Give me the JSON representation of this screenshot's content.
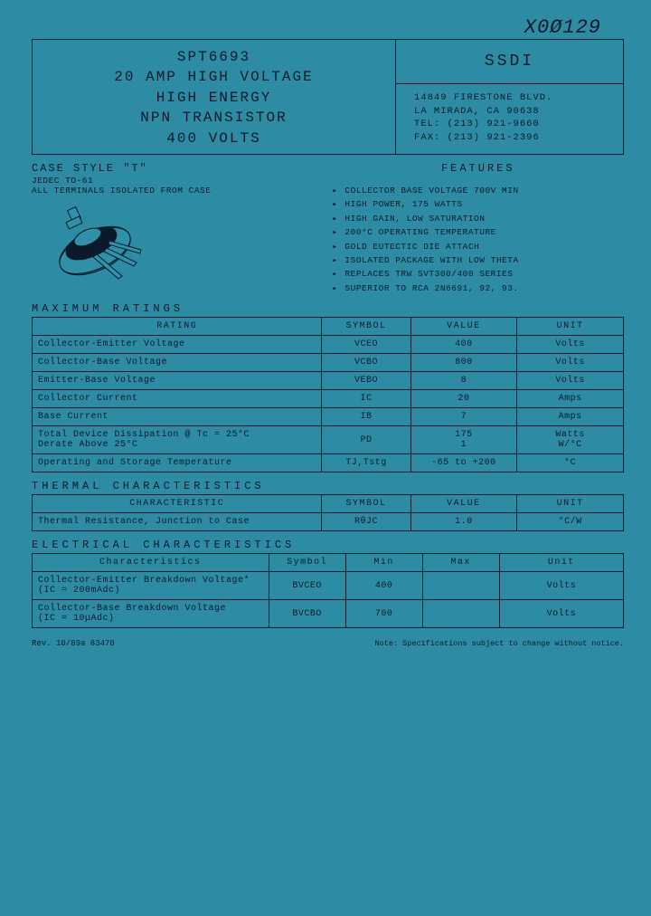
{
  "handwritten": "X0Ø129",
  "header": {
    "part": "SPT6693",
    "line1": "20 AMP HIGH VOLTAGE",
    "line2": "HIGH ENERGY",
    "line3": "NPN TRANSISTOR",
    "line4": "400 VOLTS",
    "company": "SSDI",
    "addr1": "14849 FIRESTONE BLVD.",
    "addr2": "LA MIRADA,  CA  90638",
    "tel": "TEL: (213) 921-9660",
    "fax": "FAX: (213) 921-2396"
  },
  "case": {
    "title": "CASE STYLE \"T\"",
    "sub1": "JEDEC TO-61",
    "sub2": "ALL TERMINALS ISOLATED FROM CASE"
  },
  "features": {
    "title": "FEATURES",
    "items": [
      "COLLECTOR BASE VOLTAGE 700V MIN",
      "HIGH POWER,  175 WATTS",
      "HIGH GAIN, LOW SATURATION",
      "200°C OPERATING TEMPERATURE",
      "GOLD EUTECTIC DIE ATTACH",
      "ISOLATED PACKAGE WITH LOW THETA",
      "REPLACES TRW SVT300/400 SERIES",
      "SUPERIOR TO RCA 2N6691, 92, 93."
    ]
  },
  "maxratings": {
    "title": "MAXIMUM RATINGS",
    "headers": [
      "RATING",
      "SYMBOL",
      "VALUE",
      "UNIT"
    ],
    "rows": [
      [
        "Collector-Emitter Voltage",
        "VCEO",
        "400",
        "Volts"
      ],
      [
        "Collector-Base Voltage",
        "VCBO",
        "800",
        "Volts"
      ],
      [
        "Emitter-Base Voltage",
        "VEBO",
        "8",
        "Volts"
      ],
      [
        "Collector Current",
        "IC",
        "20",
        "Amps"
      ],
      [
        "Base Current",
        "IB",
        "7",
        "Amps"
      ],
      [
        "Total Device Dissipation @ Tc = 25°C\nDerate Above  25°C",
        "PD",
        "175\n1",
        "Watts\nW/°C"
      ],
      [
        "Operating and Storage Temperature",
        "TJ,Tstg",
        "-65 to +200",
        "°C"
      ]
    ]
  },
  "thermal": {
    "title": "THERMAL CHARACTERISTICS",
    "headers": [
      "CHARACTERISTIC",
      "SYMBOL",
      "VALUE",
      "UNIT"
    ],
    "rows": [
      [
        "Thermal Resistance, Junction to Case",
        "RθJC",
        "1.0",
        "°C/W"
      ]
    ]
  },
  "electrical": {
    "title": "ELECTRICAL CHARACTERISTICS",
    "headers": [
      "Characteristics",
      "Symbol",
      "Min",
      "Max",
      "Unit"
    ],
    "rows": [
      [
        "Collector-Emitter Breakdown Voltage*\n(IC = 200mAdc)",
        "BVCEO",
        "400",
        "",
        "Volts"
      ],
      [
        "Collector-Base Breakdown Voltage\n(IC = 10µAdc)",
        "BVCBO",
        "700",
        "",
        "Volts"
      ]
    ]
  },
  "footer": {
    "rev": "Rev.  10/89a   83470",
    "note": "Note: Specifications subject to change without notice."
  },
  "col_widths": {
    "elec": [
      "40%",
      "13%",
      "13%",
      "13%",
      "21%"
    ]
  }
}
